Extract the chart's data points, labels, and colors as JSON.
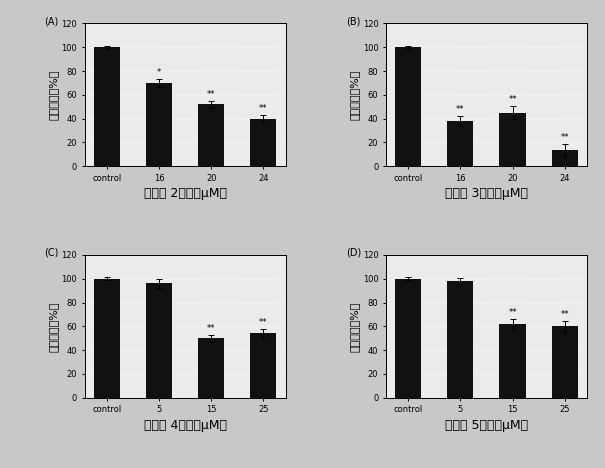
{
  "panels": [
    {
      "label": "(A)",
      "xlabel": "化合物 2浓度（μM）",
      "categories": [
        "control",
        "16",
        "20",
        "24"
      ],
      "values": [
        100,
        70,
        52,
        40
      ],
      "errors": [
        1.2,
        3.5,
        3.0,
        3.0
      ],
      "significance": [
        "",
        "*",
        "**",
        "**"
      ]
    },
    {
      "label": "(B)",
      "xlabel": "化合物 3浓度（μM）",
      "categories": [
        "control",
        "16",
        "20",
        "24"
      ],
      "values": [
        100,
        38,
        45,
        14
      ],
      "errors": [
        1.2,
        4.0,
        5.5,
        5.0
      ],
      "significance": [
        "",
        "**",
        "**",
        "**"
      ]
    },
    {
      "label": "(C)",
      "xlabel": "化合物 4浓度（μM）",
      "categories": [
        "control",
        "5",
        "15",
        "25"
      ],
      "values": [
        100,
        96,
        50,
        54
      ],
      "errors": [
        1.2,
        3.5,
        3.0,
        4.0
      ],
      "significance": [
        "",
        "",
        "**",
        "**"
      ]
    },
    {
      "label": "(D)",
      "xlabel": "化合物 5浓度（μM）",
      "categories": [
        "control",
        "5",
        "15",
        "25"
      ],
      "values": [
        100,
        98,
        62,
        60
      ],
      "errors": [
        1.2,
        2.5,
        4.0,
        4.5
      ],
      "significance": [
        "",
        "",
        "**",
        "**"
      ]
    }
  ],
  "bar_color": "#111111",
  "bar_width": 0.5,
  "ylim": [
    0,
    120
  ],
  "yticks": [
    0,
    20,
    40,
    60,
    80,
    100,
    120
  ],
  "ylabel": "细胞活力（%）",
  "background_color": "#ebebeb",
  "grid_color": "#ffffff",
  "outer_bg": "#c8c8c8",
  "tick_fontsize": 6,
  "xlabel_fontsize": 9,
  "ylabel_fontsize": 8,
  "panel_label_fontsize": 7,
  "sig_fontsize": 6
}
